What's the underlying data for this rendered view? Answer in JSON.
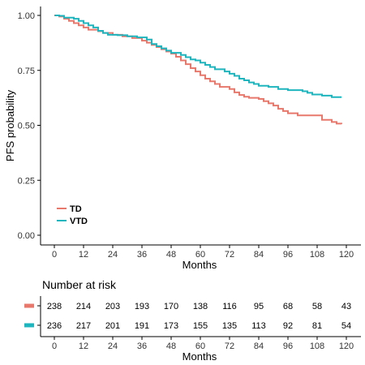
{
  "chart_data": {
    "type": "line",
    "subtype": "kaplan-meier-step",
    "ylabel": "PFS probability",
    "xlabel": "Months",
    "xlim": [
      0,
      120
    ],
    "ylim": [
      0,
      1
    ],
    "x_ticks": [
      0,
      12,
      24,
      36,
      48,
      60,
      72,
      84,
      96,
      108,
      120
    ],
    "x_tick_labels": [
      "0",
      "12",
      "24",
      "36",
      "48",
      "60",
      "72",
      "84",
      "96",
      "108",
      "120"
    ],
    "y_ticks": [
      0,
      0.25,
      0.5,
      0.75,
      1.0
    ],
    "y_tick_labels": [
      "0.00",
      "0.25",
      "0.50",
      "0.75",
      "1.00"
    ],
    "grid": false,
    "legend_position": "bottom-left",
    "series": [
      {
        "name": "TD",
        "color": "#E8786C",
        "points": [
          [
            0,
            1.0
          ],
          [
            2,
            0.995
          ],
          [
            4,
            0.985
          ],
          [
            6,
            0.975
          ],
          [
            8,
            0.965
          ],
          [
            10,
            0.955
          ],
          [
            12,
            0.945
          ],
          [
            14,
            0.935
          ],
          [
            18,
            0.928
          ],
          [
            20,
            0.92
          ],
          [
            24,
            0.912
          ],
          [
            28,
            0.905
          ],
          [
            32,
            0.897
          ],
          [
            36,
            0.885
          ],
          [
            38,
            0.876
          ],
          [
            40,
            0.866
          ],
          [
            42,
            0.856
          ],
          [
            44,
            0.846
          ],
          [
            46,
            0.836
          ],
          [
            48,
            0.826
          ],
          [
            50,
            0.812
          ],
          [
            52,
            0.795
          ],
          [
            54,
            0.778
          ],
          [
            56,
            0.76
          ],
          [
            58,
            0.745
          ],
          [
            60,
            0.728
          ],
          [
            62,
            0.712
          ],
          [
            64,
            0.7
          ],
          [
            66,
            0.688
          ],
          [
            68,
            0.675
          ],
          [
            72,
            0.665
          ],
          [
            74,
            0.65
          ],
          [
            76,
            0.638
          ],
          [
            78,
            0.63
          ],
          [
            80,
            0.625
          ],
          [
            84,
            0.62
          ],
          [
            86,
            0.61
          ],
          [
            88,
            0.6
          ],
          [
            90,
            0.59
          ],
          [
            92,
            0.575
          ],
          [
            94,
            0.565
          ],
          [
            96,
            0.555
          ],
          [
            100,
            0.545
          ],
          [
            108,
            0.545
          ],
          [
            110,
            0.525
          ],
          [
            114,
            0.515
          ],
          [
            116,
            0.508
          ],
          [
            118,
            0.506
          ]
        ]
      },
      {
        "name": "VTD",
        "color": "#1EB5BE",
        "points": [
          [
            0,
            1.0
          ],
          [
            2,
            0.998
          ],
          [
            4,
            0.99
          ],
          [
            8,
            0.985
          ],
          [
            10,
            0.975
          ],
          [
            12,
            0.965
          ],
          [
            14,
            0.955
          ],
          [
            16,
            0.945
          ],
          [
            18,
            0.93
          ],
          [
            20,
            0.92
          ],
          [
            22,
            0.912
          ],
          [
            26,
            0.91
          ],
          [
            30,
            0.905
          ],
          [
            34,
            0.9
          ],
          [
            36,
            0.9
          ],
          [
            38,
            0.89
          ],
          [
            40,
            0.87
          ],
          [
            42,
            0.86
          ],
          [
            44,
            0.85
          ],
          [
            46,
            0.84
          ],
          [
            48,
            0.83
          ],
          [
            52,
            0.82
          ],
          [
            54,
            0.81
          ],
          [
            56,
            0.8
          ],
          [
            58,
            0.795
          ],
          [
            60,
            0.785
          ],
          [
            62,
            0.775
          ],
          [
            64,
            0.765
          ],
          [
            66,
            0.755
          ],
          [
            70,
            0.745
          ],
          [
            72,
            0.735
          ],
          [
            74,
            0.725
          ],
          [
            76,
            0.712
          ],
          [
            78,
            0.705
          ],
          [
            80,
            0.695
          ],
          [
            82,
            0.688
          ],
          [
            84,
            0.68
          ],
          [
            88,
            0.675
          ],
          [
            92,
            0.665
          ],
          [
            96,
            0.66
          ],
          [
            102,
            0.655
          ],
          [
            104,
            0.648
          ],
          [
            106,
            0.64
          ],
          [
            110,
            0.635
          ],
          [
            114,
            0.628
          ],
          [
            118,
            0.628
          ]
        ]
      }
    ]
  },
  "risk_table": {
    "title": "Number at risk",
    "xlabel": "Months",
    "rows": [
      {
        "name": "TD",
        "color": "#E8786C",
        "values": [
          "238",
          "214",
          "203",
          "193",
          "170",
          "138",
          "116",
          "95",
          "68",
          "58",
          "43"
        ]
      },
      {
        "name": "VTD",
        "color": "#1EB5BE",
        "values": [
          "236",
          "217",
          "201",
          "191",
          "173",
          "155",
          "135",
          "113",
          "92",
          "81",
          "54"
        ]
      }
    ]
  }
}
